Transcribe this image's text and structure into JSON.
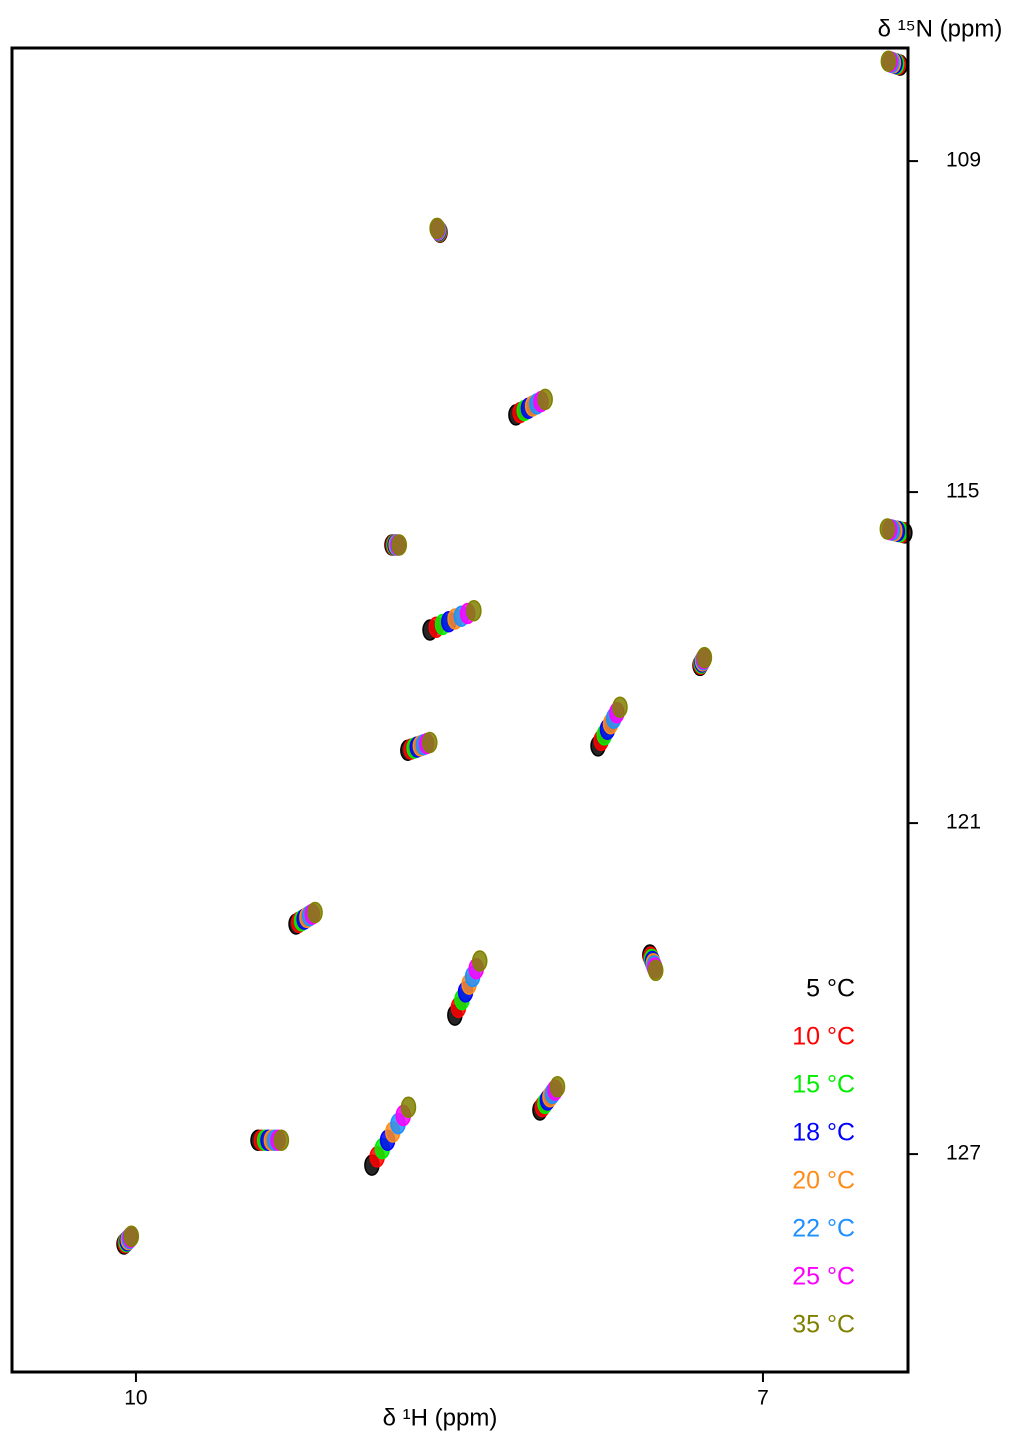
{
  "chart_data": {
    "type": "scatter",
    "x_label": "δ ¹H (ppm)",
    "y_label": "δ ¹⁵N (ppm)",
    "xlim": [
      10.593,
      6.306
    ],
    "xticks": [
      10,
      7
    ],
    "ylim": [
      106.95,
      130.95
    ],
    "yticks": [
      109,
      115,
      121,
      127
    ],
    "grid": false,
    "legend": "lower right",
    "series": [
      {
        "name": "5 °C",
        "color": "#000000",
        "x": [
          8.775,
          9.234,
          9.416,
          8.871,
          10.057,
          8.593,
          8.182,
          8.699,
          7.789,
          8.474,
          7.541,
          6.321,
          6.344,
          8.067,
          7.301,
          8.545
        ],
        "values": [
          115.96,
          122.83,
          126.75,
          127.2,
          128.63,
          117.5,
          113.6,
          119.68,
          119.6,
          124.48,
          123.39,
          115.74,
          107.26,
          126.2,
          118.14,
          110.29
        ]
      },
      {
        "name": "10 °C",
        "color": "#ff0000",
        "x": [
          8.77,
          9.221,
          9.4,
          8.846,
          10.052,
          8.563,
          8.162,
          8.684,
          7.774,
          8.457,
          7.537,
          6.333,
          6.352,
          8.055,
          7.298,
          8.547
        ],
        "values": [
          115.96,
          122.8,
          126.75,
          127.05,
          128.61,
          117.45,
          113.56,
          119.66,
          119.5,
          124.34,
          123.43,
          115.73,
          107.25,
          126.14,
          118.12,
          110.28
        ]
      },
      {
        "name": "15 °C",
        "color": "#00ee00",
        "x": [
          8.765,
          9.208,
          9.384,
          8.821,
          10.047,
          8.533,
          8.142,
          8.669,
          7.759,
          8.44,
          7.533,
          6.345,
          6.36,
          8.043,
          7.295,
          8.549
        ],
        "values": [
          115.96,
          122.77,
          126.75,
          126.9,
          128.59,
          117.4,
          113.52,
          119.64,
          119.4,
          124.2,
          123.47,
          115.72,
          107.24,
          126.08,
          118.1,
          110.27
        ]
      },
      {
        "name": "18 °C",
        "color": "#0000ff",
        "x": [
          8.76,
          9.195,
          9.368,
          8.796,
          10.042,
          8.503,
          8.122,
          8.654,
          7.744,
          8.423,
          7.529,
          6.357,
          6.368,
          8.031,
          7.292,
          8.551
        ],
        "values": [
          115.96,
          122.74,
          126.75,
          126.75,
          128.57,
          117.35,
          113.48,
          119.62,
          119.3,
          124.06,
          123.51,
          115.71,
          107.23,
          126.02,
          118.08,
          110.26
        ]
      },
      {
        "name": "20 °C",
        "color": "#ff8c1a",
        "x": [
          8.755,
          9.182,
          9.352,
          8.771,
          10.037,
          8.473,
          8.102,
          8.639,
          7.729,
          8.406,
          7.525,
          6.369,
          6.376,
          8.019,
          7.289,
          8.553
        ],
        "values": [
          115.96,
          122.71,
          126.75,
          126.6,
          128.55,
          117.3,
          113.44,
          119.6,
          119.2,
          123.92,
          123.55,
          115.7,
          107.22,
          125.96,
          118.06,
          110.25
        ]
      },
      {
        "name": "22 °C",
        "color": "#1e90ff",
        "x": [
          8.75,
          9.169,
          9.336,
          8.746,
          10.032,
          8.443,
          8.082,
          8.624,
          7.714,
          8.389,
          7.521,
          6.381,
          6.384,
          8.007,
          7.286,
          8.555
        ],
        "values": [
          115.96,
          122.68,
          126.75,
          126.45,
          128.53,
          117.25,
          113.4,
          119.58,
          119.1,
          123.78,
          123.59,
          115.69,
          107.21,
          125.9,
          118.04,
          110.24
        ]
      },
      {
        "name": "25 °C",
        "color": "#ff00ff",
        "x": [
          8.745,
          9.156,
          9.32,
          8.721,
          10.027,
          8.413,
          8.062,
          8.609,
          7.699,
          8.372,
          7.517,
          6.393,
          6.392,
          7.995,
          7.283,
          8.557
        ],
        "values": [
          115.96,
          122.65,
          126.75,
          126.3,
          128.51,
          117.2,
          113.36,
          119.56,
          119.0,
          123.64,
          123.63,
          115.68,
          107.2,
          125.84,
          118.02,
          110.23
        ]
      },
      {
        "name": "35 °C",
        "color": "#808000",
        "x": [
          8.74,
          9.143,
          9.304,
          8.696,
          10.022,
          8.383,
          8.042,
          8.594,
          7.684,
          8.355,
          7.513,
          6.405,
          6.4,
          7.983,
          7.28,
          8.559
        ],
        "values": [
          115.96,
          122.62,
          126.75,
          126.15,
          128.49,
          117.15,
          113.32,
          119.54,
          118.9,
          123.5,
          123.67,
          115.67,
          107.19,
          125.78,
          118.0,
          110.22
        ]
      }
    ]
  }
}
